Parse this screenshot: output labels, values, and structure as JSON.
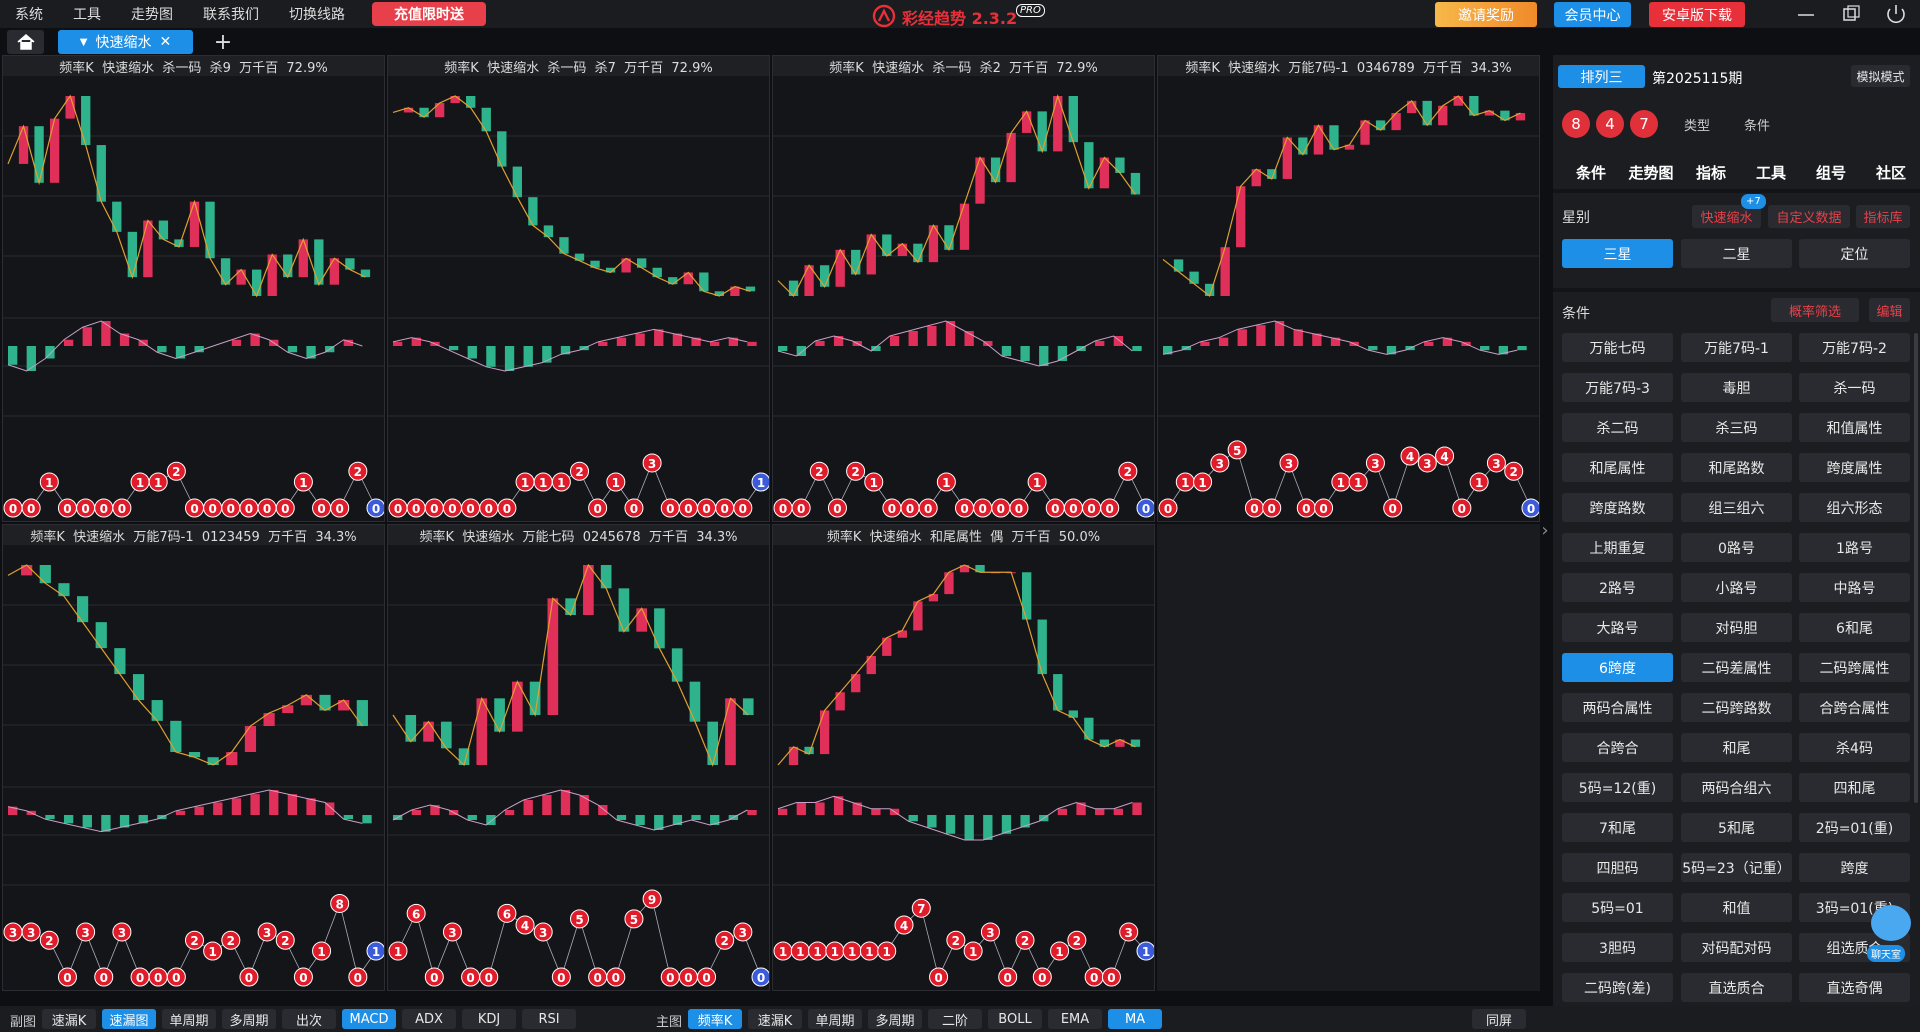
{
  "menu": [
    "系统",
    "工具",
    "走势图",
    "联系我们",
    "切换线路"
  ],
  "promo": "充值限时送",
  "app": {
    "name": "彩经趋势 2.3.2",
    "badge": "PRO"
  },
  "top_buttons": [
    "邀请奖励",
    "会员中心",
    "安卓版下载"
  ],
  "tab": "快速缩水",
  "panels": [
    {
      "title": "频率K  快速缩水  杀一码  杀9  万千百  72.9%",
      "close": [
        60,
        70,
        55,
        72,
        78,
        65,
        50,
        42,
        30,
        45,
        40,
        38,
        50,
        35,
        28,
        32,
        25,
        36,
        30,
        40,
        28,
        35,
        32,
        30
      ],
      "macd": [
        -3,
        -4,
        -2,
        1,
        3,
        4,
        2,
        1,
        -1,
        -2,
        -1,
        0,
        1,
        2,
        1,
        -1,
        -2,
        -1,
        1,
        0
      ],
      "balls": [
        0,
        0,
        1,
        0,
        0,
        0,
        0,
        1,
        1,
        2,
        0,
        0,
        0,
        0,
        0,
        0,
        1,
        0,
        0,
        2,
        0
      ]
    },
    {
      "title": "频率K  快速缩水  杀一码  杀7  万千百  72.9%",
      "close": [
        88,
        90,
        86,
        92,
        95,
        90,
        80,
        65,
        52,
        40,
        35,
        28,
        25,
        22,
        20,
        26,
        22,
        18,
        15,
        20,
        12,
        10,
        14,
        12
      ],
      "macd": [
        1,
        2,
        1,
        -1,
        -3,
        -5,
        -6,
        -5,
        -4,
        -2,
        -1,
        1,
        2,
        3,
        4,
        3,
        2,
        1,
        2,
        1
      ],
      "balls": [
        0,
        0,
        0,
        0,
        0,
        0,
        0,
        1,
        1,
        1,
        2,
        0,
        1,
        0,
        3,
        0,
        0,
        0,
        0,
        0,
        1
      ]
    },
    {
      "title": "频率K  快速缩水  杀一码  杀2  万千百  72.9%",
      "close": [
        30,
        25,
        35,
        28,
        40,
        32,
        45,
        38,
        42,
        36,
        48,
        40,
        55,
        70,
        62,
        78,
        85,
        72,
        90,
        75,
        60,
        70,
        65,
        58
      ],
      "macd": [
        -1,
        -2,
        1,
        2,
        1,
        -1,
        2,
        3,
        4,
        5,
        3,
        1,
        -2,
        -3,
        -4,
        -3,
        -1,
        1,
        2,
        -1
      ],
      "balls": [
        0,
        0,
        2,
        0,
        2,
        1,
        0,
        0,
        0,
        1,
        0,
        0,
        0,
        0,
        1,
        0,
        0,
        0,
        0,
        2,
        0
      ]
    },
    {
      "title": "频率K  快速缩水  万能7码-1  0346789  万千百  34.3%",
      "close": [
        25,
        20,
        15,
        10,
        30,
        55,
        62,
        58,
        75,
        68,
        80,
        70,
        72,
        82,
        78,
        85,
        90,
        80,
        88,
        92,
        84,
        86,
        82,
        85
      ],
      "macd": [
        -2,
        -1,
        1,
        2,
        4,
        5,
        6,
        4,
        3,
        2,
        1,
        -1,
        -2,
        -1,
        1,
        2,
        1,
        -1,
        -2,
        -1
      ],
      "balls": [
        0,
        1,
        1,
        3,
        5,
        0,
        0,
        3,
        0,
        0,
        1,
        1,
        3,
        0,
        4,
        3,
        4,
        0,
        1,
        3,
        2,
        0
      ]
    },
    {
      "title": "频率K  快速缩水  万能7码-1  0123459  万千百  34.3%",
      "close": [
        88,
        92,
        85,
        80,
        70,
        60,
        50,
        40,
        32,
        20,
        18,
        15,
        20,
        30,
        35,
        38,
        42,
        36,
        40,
        30
      ],
      "macd": [
        2,
        1,
        -1,
        -2,
        -3,
        -4,
        -3,
        -2,
        -1,
        1,
        2,
        3,
        4,
        5,
        6,
        5,
        4,
        3,
        -1,
        -2
      ],
      "balls": [
        3,
        3,
        2,
        0,
        3,
        0,
        3,
        0,
        0,
        0,
        2,
        1,
        2,
        0,
        3,
        2,
        0,
        1,
        8,
        0,
        1
      ]
    },
    {
      "title": "频率K  快速缩水  万能七码  0245678  万千百  34.3%",
      "close": [
        50,
        42,
        48,
        40,
        35,
        55,
        45,
        60,
        50,
        85,
        80,
        95,
        88,
        75,
        82,
        70,
        60,
        48,
        35,
        55,
        50
      ],
      "macd": [
        -1,
        1,
        2,
        1,
        -1,
        -2,
        1,
        3,
        4,
        5,
        4,
        2,
        -1,
        -2,
        -3,
        -2,
        -1,
        -2,
        -1,
        1
      ],
      "balls": [
        1,
        6,
        0,
        3,
        0,
        0,
        6,
        4,
        3,
        0,
        5,
        0,
        0,
        5,
        9,
        0,
        0,
        0,
        2,
        3,
        0
      ]
    },
    {
      "title": "频率K  快速缩水  和尾属性  偶  万千百  50.0%",
      "close": [
        25,
        30,
        28,
        40,
        45,
        50,
        55,
        60,
        62,
        70,
        72,
        78,
        80,
        78,
        78,
        78,
        65,
        50,
        40,
        38,
        32,
        30,
        32,
        30
      ],
      "macd": [
        1,
        2,
        2,
        3,
        2,
        1,
        1,
        -1,
        -2,
        -3,
        -4,
        -4,
        -3,
        -2,
        -1,
        1,
        2,
        1,
        1,
        2
      ],
      "balls": [
        1,
        1,
        1,
        1,
        1,
        1,
        1,
        4,
        7,
        0,
        2,
        1,
        3,
        0,
        2,
        0,
        1,
        2,
        0,
        0,
        3,
        1
      ]
    }
  ],
  "sidebar": {
    "lottery": "排列三",
    "period": "第2025115期",
    "mode": "模拟模式",
    "balls": [
      8,
      4,
      7
    ],
    "filters": [
      "类型",
      "条件"
    ],
    "nav": [
      "条件",
      "走势图",
      "指标",
      "工具",
      "组号",
      "社区"
    ],
    "star_label": "星别",
    "badge": "+7",
    "tools": [
      "快速缩水",
      "自定义数据",
      "指标库"
    ],
    "stars": [
      "三星",
      "二星",
      "定位"
    ],
    "star_active": 0,
    "cond_label": "条件",
    "cond_filter": "概率筛选",
    "edit": "编辑",
    "conditions": [
      "万能七码",
      "万能7码-1",
      "万能7码-2",
      "万能7码-3",
      "毒胆",
      "杀一码",
      "杀二码",
      "杀三码",
      "和值属性",
      "和尾属性",
      "和尾路数",
      "跨度属性",
      "跨度路数",
      "组三组六",
      "组六形态",
      "上期重复",
      "0路号",
      "1路号",
      "2路号",
      "小路号",
      "中路号",
      "大路号",
      "对码胆",
      "6和尾",
      "6跨度",
      "二码差属性",
      "二码跨属性",
      "两码合属性",
      "二码跨路数",
      "合跨合属性",
      "合跨合",
      "和尾",
      "杀4码",
      "5码=12(重)",
      "两码合组六",
      "四和尾",
      "7和尾",
      "5和尾",
      "2码=01(重)",
      "四胆码",
      "5码=23（记重）",
      "跨度",
      "5码=01",
      "和值",
      "3码=01(重)",
      "3胆码",
      "对码配对码",
      "组选质合",
      "二码跨(差)",
      "直选质合",
      "直选奇偶"
    ],
    "condition_active": 24,
    "chat": "聊天室"
  },
  "bottom_bar": {
    "sub_label": "副图",
    "sub_items": [
      "速漏K",
      "速漏图",
      "单周期",
      "多周期",
      "出次",
      "MACD",
      "ADX",
      "KDJ",
      "RSI"
    ],
    "sub_active": [
      1,
      5
    ],
    "main_label": "主图",
    "main_items": [
      "频率K",
      "速漏K",
      "单周期",
      "多周期",
      "二阶",
      "BOLL",
      "EMA",
      "MA"
    ],
    "main_active": [
      0,
      7
    ],
    "same_screen": "同屏"
  }
}
